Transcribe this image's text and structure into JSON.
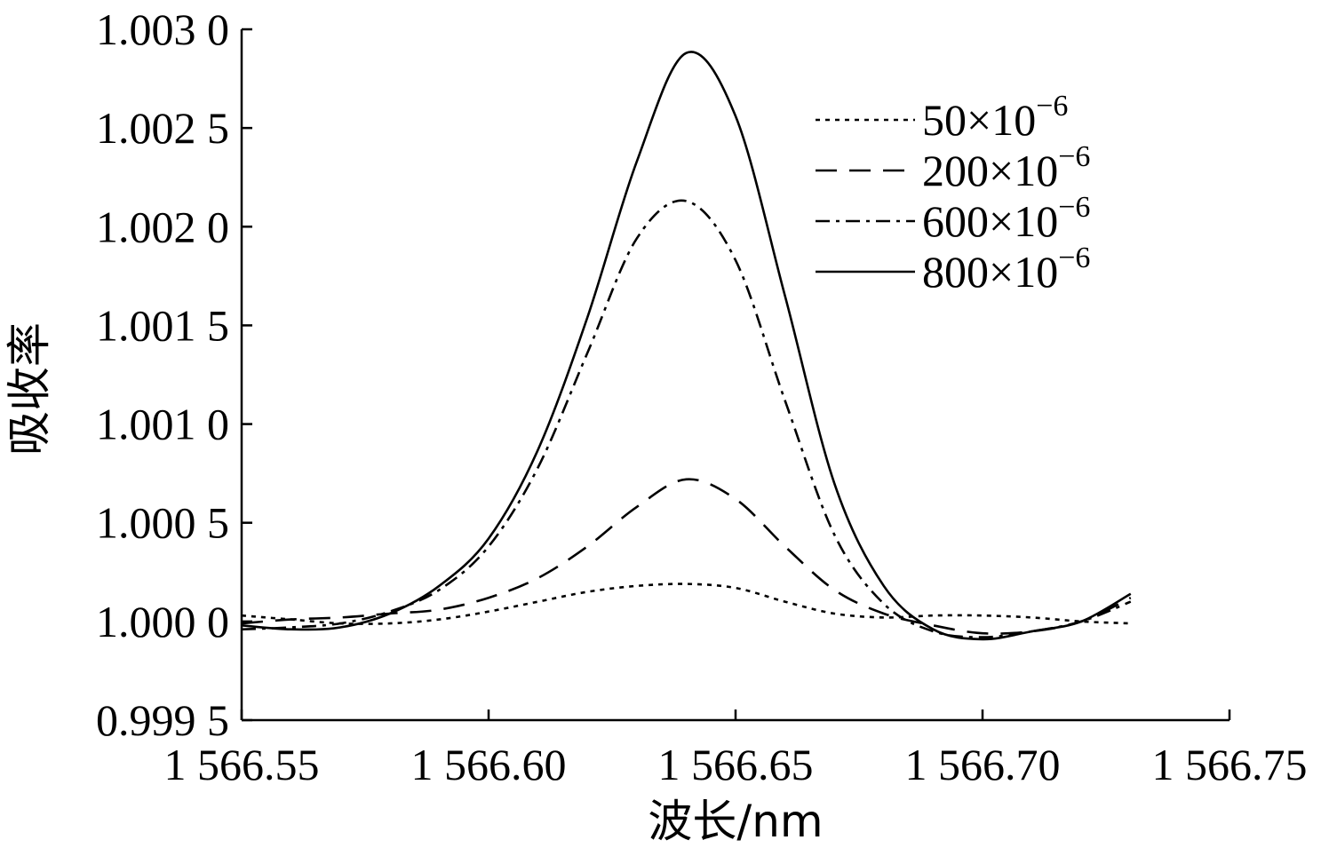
{
  "chart_data": {
    "type": "line",
    "xlabel": "波长/nm",
    "ylabel": "吸收率",
    "xlim": [
      1566.55,
      1566.75
    ],
    "ylim": [
      0.9995,
      1.003
    ],
    "x_ticks": [
      1566.55,
      1566.6,
      1566.65,
      1566.7,
      1566.75
    ],
    "x_tick_labels": [
      "1 566.55",
      "1 566.60",
      "1 566.65",
      "1 566.70",
      "1 566.75"
    ],
    "y_ticks": [
      0.9995,
      1.0,
      1.0005,
      1.001,
      1.0015,
      1.002,
      1.0025,
      1.003
    ],
    "y_tick_labels": [
      "0.999 5",
      "1.000 0",
      "1.000 5",
      "1.001 0",
      "1.001 5",
      "1.002 0",
      "1.002 5",
      "1.003 0"
    ],
    "grid": false,
    "legend_position": "top-right",
    "legend": [
      {
        "base": "50×10",
        "exp": "−6"
      },
      {
        "base": "200×10",
        "exp": "−6"
      },
      {
        "base": "600×10",
        "exp": "−6"
      },
      {
        "base": "800×10",
        "exp": "−6"
      }
    ],
    "x": [
      1566.55,
      1566.56,
      1566.57,
      1566.58,
      1566.59,
      1566.6,
      1566.61,
      1566.62,
      1566.63,
      1566.64,
      1566.65,
      1566.66,
      1566.67,
      1566.68,
      1566.69,
      1566.7,
      1566.71,
      1566.72,
      1566.73
    ],
    "series": [
      {
        "name": "50×10−6",
        "style": "dotted",
        "values": [
          1.00003,
          1.00001,
          0.99999,
          0.99999,
          1.00001,
          1.00005,
          1.0001,
          1.00015,
          1.00018,
          1.00019,
          1.00017,
          1.0001,
          1.00004,
          1.00002,
          1.00003,
          1.00003,
          1.00002,
          1.0,
          0.99999
        ]
      },
      {
        "name": "200×10−6",
        "style": "dashed",
        "values": [
          0.99999,
          1.00001,
          1.00002,
          1.00004,
          1.00006,
          1.00012,
          1.00022,
          1.00038,
          1.00058,
          1.00072,
          1.00062,
          1.00038,
          1.00016,
          1.00004,
          0.99998,
          0.99994,
          0.99995,
          1.0,
          1.00012
        ]
      },
      {
        "name": "600×10−6",
        "style": "dash-dot",
        "values": [
          0.99996,
          0.99997,
          0.99999,
          1.00005,
          1.00016,
          1.00038,
          1.00078,
          1.00136,
          1.00194,
          1.00213,
          1.00183,
          1.00112,
          1.00044,
          1.00009,
          0.99995,
          0.99992,
          0.99995,
          1.0,
          1.0001
        ]
      },
      {
        "name": "800×10−6",
        "style": "solid",
        "values": [
          0.99998,
          0.99996,
          0.99997,
          1.00004,
          1.00018,
          1.00042,
          1.00087,
          1.00154,
          1.00233,
          1.00288,
          1.00256,
          1.00165,
          1.0007,
          1.00018,
          0.99996,
          0.99991,
          0.99995,
          1.0,
          1.00014
        ]
      }
    ]
  }
}
